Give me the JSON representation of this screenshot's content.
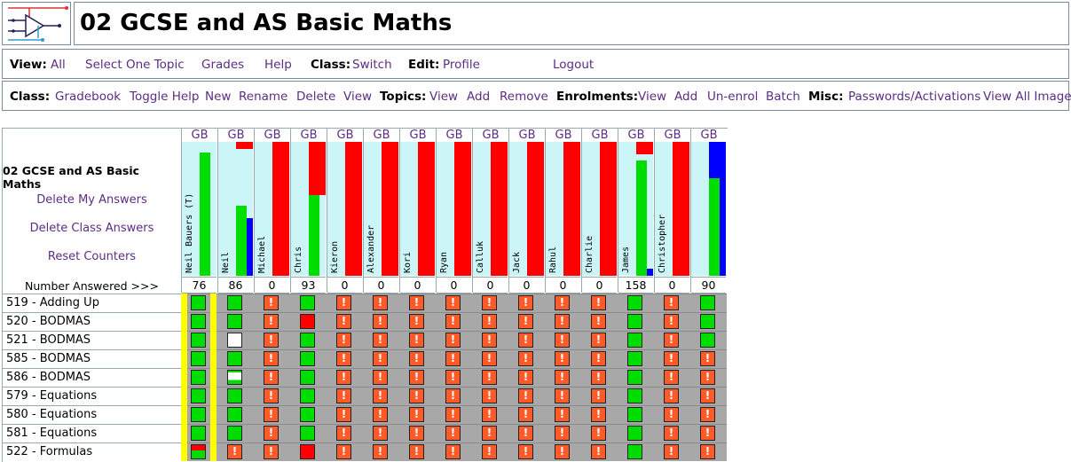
{
  "header": {
    "title": "02 GCSE and AS Basic Maths"
  },
  "menu1": {
    "view_label": "View:",
    "view_all": "All",
    "select_one_topic": "Select One Topic",
    "grades": "Grades",
    "help": "Help",
    "class_label": "Class:",
    "class_switch": "Switch",
    "edit_label": "Edit:",
    "edit_profile": "Profile",
    "logout": "Logout"
  },
  "menu2": {
    "class_label": "Class:",
    "gradebook": "Gradebook",
    "toggle_help": "Toggle Help",
    "new": "New",
    "rename": "Rename",
    "delete": "Delete",
    "view": "View",
    "topics_label": "Topics:",
    "topics_view": "View",
    "topics_add": "Add",
    "topics_remove": "Remove",
    "enrolments_label": "Enrolments:",
    "enrol_view": "View",
    "enrol_add": "Add",
    "enrol_unenrol": "Un-enrol",
    "enrol_batch": "Batch",
    "misc_label": "Misc:",
    "passwords": "Passwords/Activations",
    "view_all_images": "View All Images"
  },
  "gradebook": {
    "class_title": "02 GCSE and AS Basic Maths",
    "delete_my_answers": "Delete My Answers",
    "delete_class_answers": "Delete Class Answers",
    "reset_counters": "Reset Counters",
    "number_answered_label": "Number Answered >>>",
    "gb_label": "GB",
    "students": [
      {
        "name": "Neil Bauers (T)",
        "answered": "76",
        "green": 0.92,
        "blue": 0.0,
        "red": 0.0
      },
      {
        "name": "Neil",
        "answered": "86",
        "green": 0.52,
        "blue": 0.43,
        "red": 0.05
      },
      {
        "name": "Michael",
        "answered": "0",
        "green": 0,
        "blue": 0,
        "red": 1
      },
      {
        "name": "Chris",
        "answered": "93",
        "green": 0.6,
        "blue": 0.0,
        "red": 0.4
      },
      {
        "name": "Kieron",
        "answered": "0",
        "green": 0,
        "blue": 0,
        "red": 1
      },
      {
        "name": "Alexander",
        "answered": "0",
        "green": 0,
        "blue": 0,
        "red": 1
      },
      {
        "name": "Kori",
        "answered": "0",
        "green": 0,
        "blue": 0,
        "red": 1
      },
      {
        "name": "Ryan",
        "answered": "0",
        "green": 0,
        "blue": 0,
        "red": 1
      },
      {
        "name": "Calluk",
        "answered": "0",
        "green": 0,
        "blue": 0,
        "red": 1
      },
      {
        "name": "Jack",
        "answered": "0",
        "green": 0,
        "blue": 0,
        "red": 1
      },
      {
        "name": "Rahul",
        "answered": "0",
        "green": 0,
        "blue": 0,
        "red": 1
      },
      {
        "name": "Charlie",
        "answered": "0",
        "green": 0,
        "blue": 0,
        "red": 1
      },
      {
        "name": "James",
        "answered": "158",
        "green": 0.86,
        "blue": 0.05,
        "red": 0.09
      },
      {
        "name": "Christopher",
        "answered": "0",
        "green": 0,
        "blue": 0,
        "red": 1
      },
      {
        "name": "",
        "answered": "90",
        "green": 0.73,
        "blue": 1.0,
        "red": 0.0
      }
    ],
    "topics": [
      {
        "label": "519 - Adding Up",
        "cells": [
          "g",
          "g",
          "w",
          "g",
          "w",
          "w",
          "w",
          "w",
          "w",
          "w",
          "w",
          "w",
          "g",
          "w",
          "g"
        ]
      },
      {
        "label": "520 - BODMAS",
        "cells": [
          "g",
          "g",
          "w",
          "r",
          "w",
          "w",
          "w",
          "w",
          "w",
          "w",
          "w",
          "w",
          "g",
          "w",
          "g"
        ]
      },
      {
        "label": "521 - BODMAS",
        "cells": [
          "g",
          "white",
          "w",
          "g",
          "w",
          "w",
          "w",
          "w",
          "w",
          "w",
          "w",
          "w",
          "g",
          "w",
          "g"
        ]
      },
      {
        "label": "585 - BODMAS",
        "cells": [
          "g",
          "g",
          "w",
          "g",
          "w",
          "w",
          "w",
          "w",
          "w",
          "w",
          "w",
          "w",
          "g",
          "w",
          "w"
        ]
      },
      {
        "label": "586 - BODMAS",
        "cells": [
          "g",
          "halfwhite",
          "w",
          "g",
          "w",
          "w",
          "w",
          "w",
          "w",
          "w",
          "w",
          "w",
          "g",
          "w",
          "w"
        ]
      },
      {
        "label": "579 - Equations",
        "cells": [
          "g",
          "g",
          "w",
          "g",
          "w",
          "w",
          "w",
          "w",
          "w",
          "w",
          "w",
          "w",
          "g",
          "w",
          "w"
        ]
      },
      {
        "label": "580 - Equations",
        "cells": [
          "g",
          "g",
          "w",
          "g",
          "w",
          "w",
          "w",
          "w",
          "w",
          "w",
          "w",
          "w",
          "g",
          "w",
          "w"
        ]
      },
      {
        "label": "581 - Equations",
        "cells": [
          "g",
          "g",
          "w",
          "g",
          "w",
          "w",
          "w",
          "w",
          "w",
          "w",
          "w",
          "w",
          "g",
          "w",
          "w"
        ]
      },
      {
        "label": "522 - Formulas",
        "cells": [
          "gr",
          "w",
          "w",
          "r",
          "w",
          "w",
          "w",
          "w",
          "w",
          "w",
          "w",
          "w",
          "g",
          "w",
          "w"
        ]
      }
    ]
  },
  "colors": {
    "link": "#5b2d84",
    "name_bg": "#ccf5f8",
    "green": "#00dd00",
    "red": "#ff0000",
    "blue": "#0000ff",
    "warn": "#ff5a28",
    "gray": "#a8a8a8",
    "yellow": "#ffff00"
  }
}
